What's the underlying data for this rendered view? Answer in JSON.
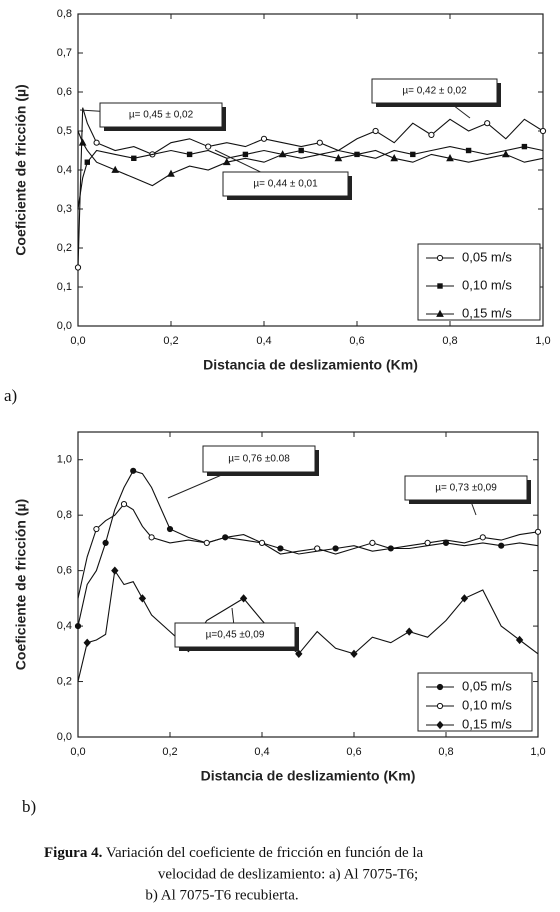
{
  "chart_data": [
    {
      "type": "line",
      "panel": "a)",
      "ylabel": "Coeficiente de fricción (µ)",
      "xlabel": "Distancia de deslizamiento (Km)",
      "xlim": [
        0,
        1.0
      ],
      "ylim": [
        0,
        0.8
      ],
      "xticks": [
        {
          "value": 0,
          "label": "0,0"
        },
        {
          "value": 0.2,
          "label": "0,2"
        },
        {
          "value": 0.4,
          "label": "0,4"
        },
        {
          "value": 0.6,
          "label": "0,6"
        },
        {
          "value": 0.8,
          "label": "0,8"
        },
        {
          "value": 1.0,
          "label": "1,0"
        }
      ],
      "yticks": [
        {
          "value": 0,
          "label": "0,0"
        },
        {
          "value": 0.1,
          "label": "0,1"
        },
        {
          "value": 0.2,
          "label": "0,2"
        },
        {
          "value": 0.3,
          "label": "0,3"
        },
        {
          "value": 0.4,
          "label": "0,4"
        },
        {
          "value": 0.5,
          "label": "0,5"
        },
        {
          "value": 0.6,
          "label": "0,6"
        },
        {
          "value": 0.7,
          "label": "0,7"
        },
        {
          "value": 0.8,
          "label": "0,8"
        }
      ],
      "x": [
        0,
        0.01,
        0.02,
        0.04,
        0.08,
        0.12,
        0.16,
        0.2,
        0.24,
        0.28,
        0.32,
        0.36,
        0.4,
        0.44,
        0.48,
        0.52,
        0.56,
        0.6,
        0.64,
        0.68,
        0.72,
        0.76,
        0.8,
        0.84,
        0.88,
        0.92,
        0.96,
        1.0
      ],
      "series": [
        {
          "name": "0,05 m/s",
          "color": "#111",
          "marker": "open-circle",
          "values": [
            0.15,
            0.56,
            0.52,
            0.47,
            0.45,
            0.46,
            0.44,
            0.47,
            0.48,
            0.46,
            0.47,
            0.46,
            0.48,
            0.47,
            0.46,
            0.47,
            0.45,
            0.48,
            0.5,
            0.47,
            0.52,
            0.49,
            0.53,
            0.5,
            0.52,
            0.48,
            0.53,
            0.5
          ]
        },
        {
          "name": "0,10 m/s",
          "color": "#111",
          "marker": "square",
          "values": [
            0.3,
            0.38,
            0.42,
            0.45,
            0.44,
            0.43,
            0.44,
            0.45,
            0.44,
            0.45,
            0.43,
            0.44,
            0.45,
            0.44,
            0.45,
            0.44,
            0.45,
            0.44,
            0.43,
            0.45,
            0.44,
            0.45,
            0.46,
            0.45,
            0.44,
            0.45,
            0.46,
            0.45
          ]
        },
        {
          "name": "0,15 m/s",
          "color": "#111",
          "marker": "triangle",
          "values": [
            0.5,
            0.47,
            0.45,
            0.42,
            0.4,
            0.38,
            0.36,
            0.39,
            0.41,
            0.4,
            0.42,
            0.43,
            0.42,
            0.44,
            0.43,
            0.44,
            0.43,
            0.44,
            0.45,
            0.43,
            0.42,
            0.44,
            0.43,
            0.42,
            0.43,
            0.44,
            0.42,
            0.43
          ]
        }
      ],
      "annotations": [
        "µ= 0,45  ± 0,02",
        "µ= 0,44  ± 0,01",
        "µ= 0,42  ± 0,02"
      ]
    },
    {
      "type": "line",
      "panel": "b)",
      "ylabel": "Coeficiente de fricción (µ)",
      "xlabel": "Distancia de deslizamiento (Km)",
      "xlim": [
        0,
        1.0
      ],
      "ylim": [
        0,
        1.1
      ],
      "xticks": [
        {
          "value": 0,
          "label": "0,0"
        },
        {
          "value": 0.2,
          "label": "0,2"
        },
        {
          "value": 0.4,
          "label": "0,4"
        },
        {
          "value": 0.6,
          "label": "0,6"
        },
        {
          "value": 0.8,
          "label": "0,8"
        },
        {
          "value": 1.0,
          "label": "1,0"
        }
      ],
      "yticks": [
        {
          "value": 0,
          "label": "0,0"
        },
        {
          "value": 0.2,
          "label": "0,2"
        },
        {
          "value": 0.4,
          "label": "0,4"
        },
        {
          "value": 0.6,
          "label": "0,6"
        },
        {
          "value": 0.8,
          "label": "0,8"
        },
        {
          "value": 1.0,
          "label": "1,0"
        }
      ],
      "x": [
        0,
        0.02,
        0.04,
        0.06,
        0.08,
        0.1,
        0.12,
        0.14,
        0.16,
        0.2,
        0.24,
        0.28,
        0.32,
        0.36,
        0.4,
        0.44,
        0.48,
        0.52,
        0.56,
        0.6,
        0.64,
        0.68,
        0.72,
        0.76,
        0.8,
        0.84,
        0.88,
        0.92,
        0.96,
        1.0
      ],
      "series": [
        {
          "name": "0,05 m/s",
          "color": "#111",
          "marker": "circle",
          "values": [
            0.4,
            0.55,
            0.6,
            0.7,
            0.82,
            0.9,
            0.96,
            0.95,
            0.9,
            0.75,
            0.72,
            0.7,
            0.72,
            0.73,
            0.7,
            0.68,
            0.66,
            0.67,
            0.68,
            0.69,
            0.67,
            0.68,
            0.68,
            0.69,
            0.7,
            0.69,
            0.7,
            0.69,
            0.7,
            0.69
          ]
        },
        {
          "name": "0,10 m/s",
          "color": "#111",
          "marker": "open-circle",
          "values": [
            0.5,
            0.65,
            0.75,
            0.78,
            0.8,
            0.84,
            0.82,
            0.76,
            0.72,
            0.7,
            0.71,
            0.7,
            0.72,
            0.71,
            0.7,
            0.66,
            0.67,
            0.68,
            0.66,
            0.68,
            0.7,
            0.68,
            0.69,
            0.7,
            0.71,
            0.7,
            0.72,
            0.71,
            0.73,
            0.74
          ]
        },
        {
          "name": "0,15 m/s",
          "color": "#111",
          "marker": "diamond",
          "values": [
            0.2,
            0.34,
            0.35,
            0.37,
            0.6,
            0.55,
            0.56,
            0.5,
            0.44,
            0.38,
            0.32,
            0.42,
            0.46,
            0.5,
            0.42,
            0.35,
            0.3,
            0.38,
            0.32,
            0.3,
            0.36,
            0.34,
            0.38,
            0.36,
            0.42,
            0.5,
            0.53,
            0.4,
            0.35,
            0.3
          ]
        }
      ],
      "annotations": [
        "µ= 0,76  ±0.08",
        "µ= 0,73  ±0,09",
        "µ=0,45  ±0,09"
      ]
    }
  ],
  "caption": {
    "label": "Figura 4.",
    "lines": [
      "Variación del coeficiente de fricción en función de la",
      "velocidad de deslizamiento: a) Al 7075-T6;",
      "b) Al 7075-T6 recubierta."
    ]
  }
}
